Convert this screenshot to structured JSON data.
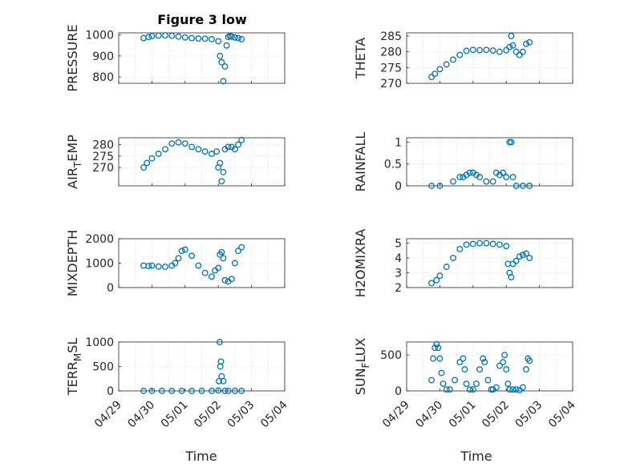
{
  "figure": {
    "title": "Figure 3 low",
    "xlabel": "Time"
  },
  "chart_data": [
    {
      "type": "scatter",
      "ylabel": "PRESSURE",
      "ylim": [
        770,
        1010
      ],
      "yticks": [
        800,
        900,
        1000
      ],
      "yticklabels": [
        "800",
        "900",
        "1000"
      ],
      "x": [
        0.75,
        0.9,
        1.0,
        1.2,
        1.4,
        1.6,
        1.8,
        2.0,
        2.2,
        2.4,
        2.6,
        2.8,
        3.0,
        3.05,
        3.1,
        3.15,
        3.2,
        3.25,
        3.3,
        3.35,
        3.4,
        3.5,
        3.6,
        3.7
      ],
      "y": [
        985,
        990,
        995,
        997,
        998,
        996,
        992,
        988,
        985,
        983,
        982,
        980,
        970,
        900,
        870,
        780,
        850,
        950,
        990,
        995,
        992,
        988,
        985,
        980
      ]
    },
    {
      "type": "scatter",
      "ylabel": "THETA",
      "ylim": [
        270,
        286
      ],
      "yticks": [
        270,
        275,
        280,
        285
      ],
      "yticklabels": [
        "270",
        "275",
        "280",
        "285"
      ],
      "x": [
        0.75,
        0.85,
        1.0,
        1.2,
        1.4,
        1.6,
        1.8,
        2.0,
        2.2,
        2.4,
        2.6,
        2.8,
        3.0,
        3.1,
        3.15,
        3.2,
        3.3,
        3.4,
        3.5,
        3.6,
        3.7
      ],
      "y": [
        272,
        273,
        274.5,
        276,
        277.5,
        279,
        280.3,
        280.6,
        280.5,
        280.6,
        280.4,
        280.0,
        280.5,
        281.5,
        285,
        282,
        280,
        279,
        280,
        282.5,
        283
      ]
    },
    {
      "type": "scatter",
      "ylabel": "AIR_TEMP",
      "ylim": [
        262,
        283
      ],
      "yticks": [
        270,
        275,
        280
      ],
      "yticklabels": [
        "270",
        "275",
        "280"
      ],
      "x": [
        0.75,
        0.85,
        1.0,
        1.2,
        1.4,
        1.6,
        1.8,
        2.0,
        2.2,
        2.4,
        2.6,
        2.8,
        2.95,
        3.0,
        3.05,
        3.1,
        3.15,
        3.2,
        3.3,
        3.4,
        3.5,
        3.6,
        3.7
      ],
      "y": [
        270,
        272,
        274,
        276,
        278,
        280.5,
        281,
        280.5,
        279,
        278,
        277,
        276,
        277,
        270,
        272,
        264,
        268,
        278,
        279,
        279,
        278,
        280,
        282
      ]
    },
    {
      "type": "scatter",
      "ylabel": "RAINFALL",
      "ylim": [
        0,
        1.1
      ],
      "yticks": [
        0,
        0.5,
        1
      ],
      "yticklabels": [
        "0",
        "0.5",
        "1"
      ],
      "x": [
        0.75,
        1.0,
        1.4,
        1.6,
        1.7,
        1.8,
        1.9,
        2.0,
        2.1,
        2.2,
        2.4,
        2.6,
        2.7,
        2.8,
        2.9,
        3.0,
        3.1,
        3.15,
        3.2,
        3.3,
        3.5,
        3.7
      ],
      "y": [
        0,
        0,
        0.1,
        0.2,
        0.2,
        0.25,
        0.3,
        0.3,
        0.25,
        0.2,
        0.1,
        0.1,
        0.3,
        0.25,
        0.3,
        0.2,
        1.0,
        1.0,
        0.2,
        0,
        0,
        0
      ]
    },
    {
      "type": "scatter",
      "ylabel": "MIXDEPTH",
      "ylim": [
        0,
        2000
      ],
      "yticks": [
        0,
        1000,
        2000
      ],
      "yticklabels": [
        "0",
        "1000",
        "2000"
      ],
      "x": [
        0.75,
        0.9,
        1.0,
        1.2,
        1.4,
        1.6,
        1.7,
        1.8,
        1.9,
        2.0,
        2.2,
        2.4,
        2.6,
        2.8,
        2.9,
        3.0,
        3.05,
        3.1,
        3.15,
        3.2,
        3.3,
        3.4,
        3.5,
        3.6,
        3.7
      ],
      "y": [
        900,
        880,
        900,
        860,
        850,
        900,
        1000,
        1200,
        1500,
        1550,
        1300,
        900,
        600,
        450,
        700,
        800,
        1350,
        1450,
        1200,
        300,
        250,
        350,
        1000,
        1500,
        1650
      ]
    },
    {
      "type": "scatter",
      "ylabel": "H2OMIXRA",
      "ylim": [
        2,
        5.3
      ],
      "yticks": [
        2,
        3,
        4,
        5
      ],
      "yticklabels": [
        "2",
        "3",
        "4",
        "5"
      ],
      "x": [
        0.75,
        0.9,
        1.0,
        1.2,
        1.4,
        1.6,
        1.8,
        2.0,
        2.2,
        2.4,
        2.6,
        2.8,
        3.0,
        3.05,
        3.1,
        3.15,
        3.2,
        3.3,
        3.4,
        3.5,
        3.6,
        3.7
      ],
      "y": [
        2.3,
        2.5,
        2.8,
        3.4,
        4.0,
        4.6,
        4.9,
        4.95,
        5.0,
        5.0,
        4.95,
        4.9,
        4.8,
        3.6,
        3.0,
        2.7,
        3.6,
        3.8,
        4.1,
        4.2,
        4.3,
        4.0
      ]
    },
    {
      "type": "scatter",
      "ylabel": "TERR_MSL",
      "ylim": [
        0,
        1000
      ],
      "yticks": [
        0,
        500,
        1000
      ],
      "yticklabels": [
        "0",
        "500",
        "1000"
      ],
      "x": [
        0.75,
        1.0,
        1.3,
        1.6,
        1.9,
        2.2,
        2.5,
        2.8,
        3.0,
        3.02,
        3.04,
        3.06,
        3.08,
        3.1,
        3.15,
        3.2,
        3.3,
        3.5,
        3.7
      ],
      "y": [
        0,
        0,
        0,
        0,
        0,
        0,
        0,
        0,
        10,
        200,
        1000,
        500,
        600,
        300,
        200,
        0,
        0,
        0,
        0
      ]
    },
    {
      "type": "scatter",
      "ylabel": "SUN_FLUX",
      "ylim": [
        0,
        680
      ],
      "yticks": [
        0,
        500
      ],
      "yticklabels": [
        "0",
        "500"
      ],
      "x": [
        0.75,
        0.8,
        0.85,
        0.9,
        0.95,
        1.0,
        1.05,
        1.1,
        1.2,
        1.3,
        1.45,
        1.6,
        1.7,
        1.75,
        1.8,
        1.9,
        2.0,
        2.1,
        2.2,
        2.3,
        2.35,
        2.45,
        2.55,
        2.6,
        2.7,
        2.8,
        2.9,
        2.95,
        3.0,
        3.05,
        3.1,
        3.2,
        3.3,
        3.4,
        3.5,
        3.6,
        3.65,
        3.7
      ],
      "y": [
        150,
        450,
        600,
        650,
        600,
        450,
        250,
        100,
        20,
        20,
        150,
        400,
        450,
        300,
        100,
        20,
        20,
        100,
        300,
        450,
        400,
        150,
        20,
        20,
        50,
        350,
        400,
        500,
        300,
        100,
        20,
        20,
        20,
        10,
        50,
        300,
        450,
        420
      ]
    }
  ]
}
